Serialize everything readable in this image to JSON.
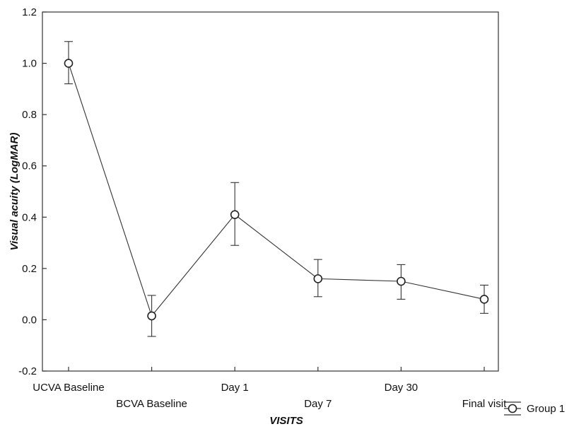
{
  "chart_data": {
    "type": "line",
    "xlabel": "VISITS",
    "ylabel": "Visual acuity (LogMAR)",
    "ylim": [
      -0.2,
      1.2
    ],
    "yticks": [
      "-0.2",
      "0.0",
      "0.2",
      "0.4",
      "0.6",
      "0.8",
      "1.0",
      "1.2"
    ],
    "categories": [
      "UCVA Baseline",
      "BCVA Baseline",
      "Day 1",
      "Day 7",
      "Day 30",
      "Final visit"
    ],
    "series": [
      {
        "name": "Group 1",
        "values": [
          1.0,
          0.015,
          0.41,
          0.16,
          0.15,
          0.08
        ],
        "error_low": [
          0.92,
          -0.065,
          0.29,
          0.09,
          0.08,
          0.025
        ],
        "error_high": [
          1.085,
          0.095,
          0.535,
          0.235,
          0.215,
          0.135
        ]
      }
    ],
    "grid": false,
    "legend_position": "bottom-right",
    "line_color": "#333333",
    "marker_fill": "#ffffff"
  }
}
